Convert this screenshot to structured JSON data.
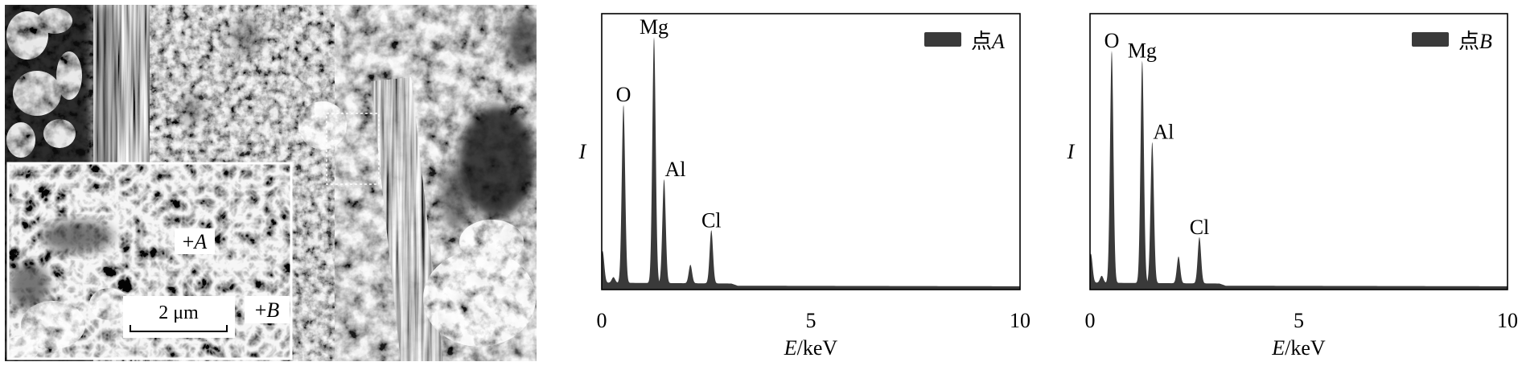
{
  "sem_image": {
    "marker_a": "+A",
    "marker_b": "+B",
    "scale_bar": "2 μm"
  },
  "colors": {
    "spectrum_fill": "#3a3a3a",
    "frame": "#000000"
  },
  "chart_data": [
    {
      "type": "area",
      "xlabel": "E/keV",
      "ylabel": "I",
      "xlim": [
        0,
        10
      ],
      "ylim": [
        0,
        1
      ],
      "xticks": [
        0,
        5,
        10
      ],
      "grid": false,
      "legend": {
        "label": "点A",
        "position": "top-right"
      },
      "continuum": [
        [
          0,
          0.025
        ],
        [
          3.1,
          0.022
        ],
        [
          3.25,
          0.014
        ],
        [
          10,
          0.012
        ]
      ],
      "peaks": [
        {
          "energy": 0.02,
          "intensity": 0.14
        },
        {
          "energy": 0.28,
          "intensity": 0.045
        },
        {
          "energy": 0.52,
          "intensity": 0.67,
          "label": "O"
        },
        {
          "energy": 1.25,
          "intensity": 0.915,
          "label": "Mg"
        },
        {
          "energy": 1.49,
          "intensity": 0.4,
          "label": "Al"
        },
        {
          "energy": 2.12,
          "intensity": 0.09
        },
        {
          "energy": 2.62,
          "intensity": 0.215,
          "label": "Cl"
        }
      ]
    },
    {
      "type": "area",
      "xlabel": "E/keV",
      "ylabel": "I",
      "xlim": [
        0,
        10
      ],
      "ylim": [
        0,
        1
      ],
      "xticks": [
        0,
        5,
        10
      ],
      "grid": false,
      "legend": {
        "label": "点B",
        "position": "top-right"
      },
      "continuum": [
        [
          0,
          0.025
        ],
        [
          3.1,
          0.022
        ],
        [
          3.25,
          0.014
        ],
        [
          10,
          0.012
        ]
      ],
      "peaks": [
        {
          "energy": 0.02,
          "intensity": 0.13
        },
        {
          "energy": 0.28,
          "intensity": 0.05
        },
        {
          "energy": 0.52,
          "intensity": 0.866,
          "label": "O"
        },
        {
          "energy": 1.25,
          "intensity": 0.83,
          "label": "Mg"
        },
        {
          "energy": 1.49,
          "intensity": 0.535,
          "label": "Al"
        },
        {
          "energy": 2.12,
          "intensity": 0.12
        },
        {
          "energy": 2.62,
          "intensity": 0.19,
          "label": "Cl"
        }
      ]
    }
  ]
}
